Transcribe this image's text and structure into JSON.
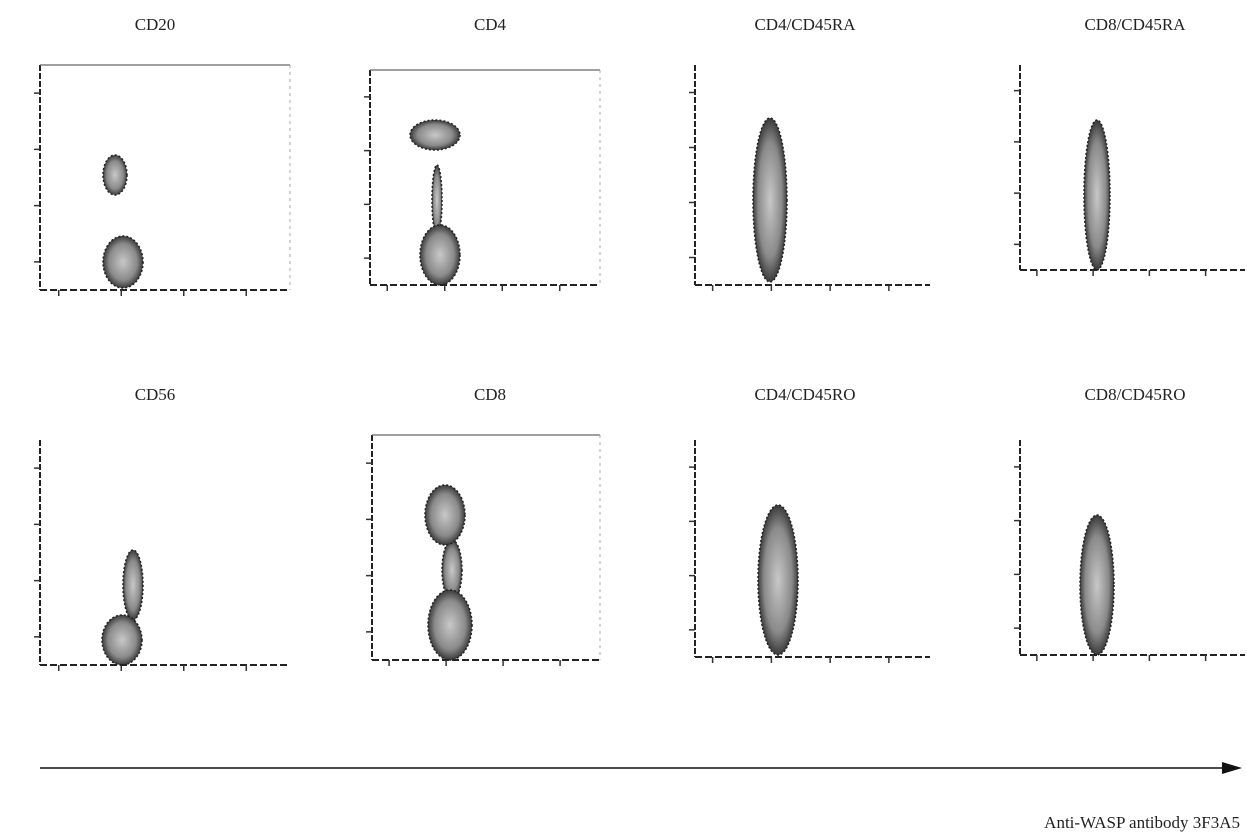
{
  "panels": [
    {
      "title": "CD20"
    },
    {
      "title": "CD4"
    },
    {
      "title": "CD4/CD45RA"
    },
    {
      "title": "CD8/CD45RA"
    },
    {
      "title": "CD56"
    },
    {
      "title": "CD8"
    },
    {
      "title": "CD4/CD45RO"
    },
    {
      "title": "CD8/CD45RO"
    }
  ],
  "axis_label": "Anti-WASP antibody 3F3A5"
}
